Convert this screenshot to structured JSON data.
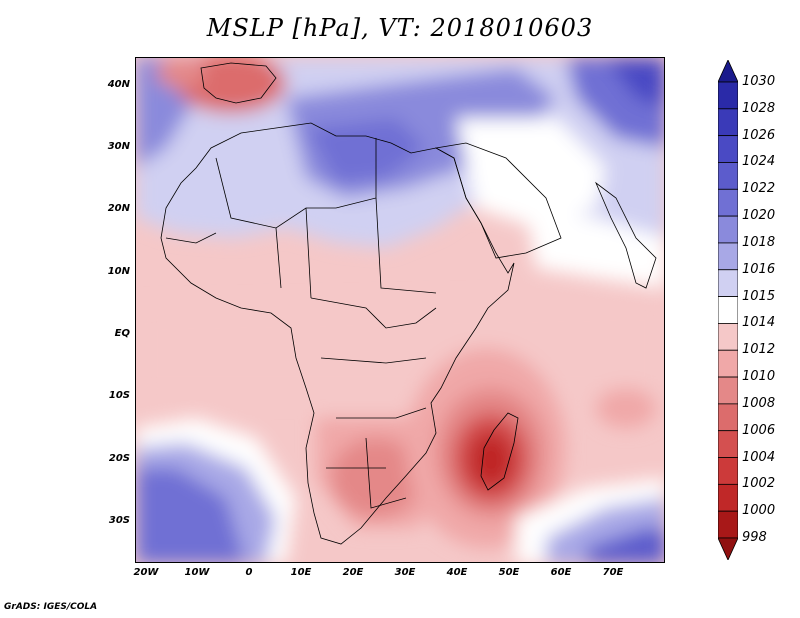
{
  "title": "MSLP [hPa], VT: 2018010603",
  "footer": "GrADS: IGES/COLA",
  "lat_labels": [
    "40N",
    "30N",
    "20N",
    "10N",
    "EQ",
    "10S",
    "20S",
    "30S"
  ],
  "lon_labels": [
    "20W",
    "10W",
    "0",
    "10E",
    "20E",
    "30E",
    "40E",
    "50E",
    "60E",
    "70E"
  ],
  "colorbar": {
    "levels": [
      "1030",
      "1028",
      "1026",
      "1024",
      "1022",
      "1020",
      "1018",
      "1016",
      "1015",
      "1014",
      "1012",
      "1010",
      "1008",
      "1006",
      "1004",
      "1002",
      "1000",
      "998"
    ],
    "colors": [
      "#1a1a8c",
      "#2a2aa8",
      "#3a3ab8",
      "#4a4ac4",
      "#5c5ccc",
      "#7070d4",
      "#8a8adc",
      "#a8a8e6",
      "#d0d0f2",
      "#ffffff",
      "#f5c8c8",
      "#f0a8a8",
      "#e48888",
      "#dc6c6c",
      "#d45050",
      "#cc3a3a",
      "#c02828",
      "#a81818",
      "#901010"
    ]
  },
  "colors": {
    "frame": "#000000",
    "land_outline": "#000000"
  }
}
